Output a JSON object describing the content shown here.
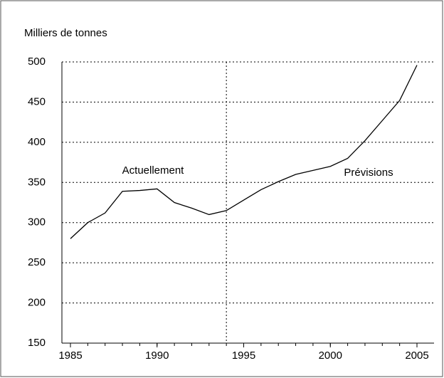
{
  "chart_data": {
    "type": "line",
    "y_label": "Milliers de tonnes",
    "x": [
      1985,
      1986,
      1987,
      1988,
      1989,
      1990,
      1991,
      1992,
      1993,
      1994,
      1995,
      1996,
      1997,
      1998,
      1999,
      2000,
      2001,
      2002,
      2003,
      2004,
      2005
    ],
    "series": [
      {
        "color": "#000000",
        "values": [
          280,
          300,
          312,
          339,
          340,
          342,
          325,
          318,
          310,
          315,
          328,
          341,
          351,
          360,
          365,
          370,
          380,
          402,
          427,
          452,
          496
        ]
      }
    ],
    "xlim": [
      1985,
      2005
    ],
    "xticks": [
      1985,
      1990,
      1995,
      2000,
      2005
    ],
    "ylim": [
      150,
      500
    ],
    "yticks": [
      150,
      200,
      250,
      300,
      350,
      400,
      450,
      500
    ],
    "grid": true,
    "vlines": [
      1994
    ],
    "annotations": [
      "Actuellement",
      "Prévisions"
    ]
  }
}
